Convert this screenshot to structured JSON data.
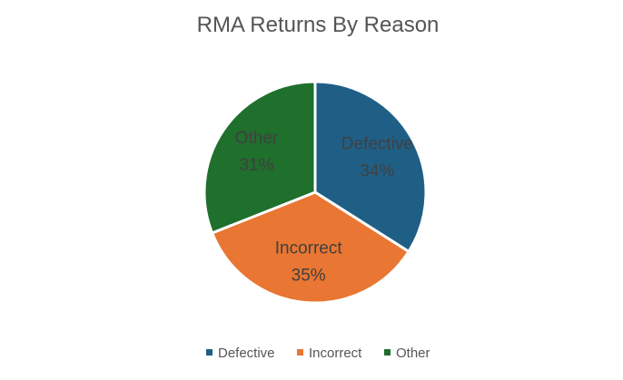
{
  "chart_data": {
    "type": "pie",
    "title": "RMA Returns By Reason",
    "legend_position": "bottom",
    "slices": [
      {
        "label": "Defective",
        "value": 34,
        "value_label": "34%",
        "color": "#1f5f86"
      },
      {
        "label": "Incorrect",
        "value": 35,
        "value_label": "35%",
        "color": "#e97632"
      },
      {
        "label": "Other",
        "value": 31,
        "value_label": "31%",
        "color": "#1f6f2d"
      }
    ],
    "legend": [
      {
        "label": "Defective",
        "color": "#1f5f86"
      },
      {
        "label": "Incorrect",
        "color": "#e97632"
      },
      {
        "label": "Other",
        "color": "#1f6f2d"
      }
    ]
  }
}
